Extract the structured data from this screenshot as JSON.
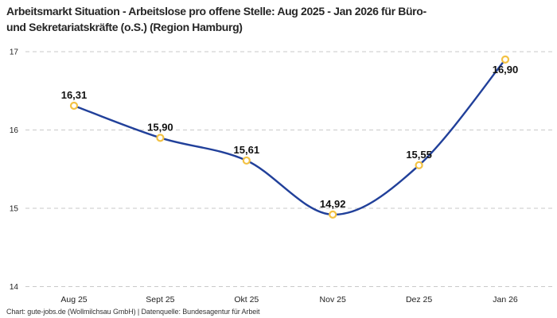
{
  "header": {
    "title_line1": "Arbeitsmarkt Situation - Arbeitslose pro offene Stelle: Aug 2025 - Jan 2026 für Büro-",
    "title_line2": "und Sekretariatskräfte (o.S.) (Region Hamburg)"
  },
  "footer": {
    "attribution": "Chart: gute-jobs.de (Wollmilchsau GmbH) | Datenquelle: Bundesagentur für Arbeit"
  },
  "chart_data": {
    "type": "line",
    "title": "Arbeitsmarkt Situation - Arbeitslose pro offene Stelle: Aug 2025 - Jan 2026 für Büro- und Sekretariatskräfte (o.S.) (Region Hamburg)",
    "categories": [
      "Aug 25",
      "Sept 25",
      "Okt 25",
      "Nov 25",
      "Dez 25",
      "Jan 26"
    ],
    "values": [
      16.31,
      15.9,
      15.61,
      14.92,
      15.55,
      16.9
    ],
    "value_labels": [
      "16,31",
      "15,90",
      "15,61",
      "14,92",
      "15,55",
      "16,90"
    ],
    "label_placements": [
      "above",
      "above",
      "above",
      "above",
      "above",
      "below"
    ],
    "xlabel": "",
    "ylabel": "",
    "ylim": [
      14,
      17
    ],
    "yticks": [
      14,
      15,
      16,
      17
    ],
    "ytick_labels": [
      "14",
      "15",
      "16",
      "17"
    ],
    "grid": "horizontal-dashed",
    "legend": "none",
    "line_smoothing": "spline",
    "colors": {
      "line": "#21409A",
      "marker_stroke": "#F3C244",
      "marker_fill": "#FFFFFF",
      "grid": "#C9C9C9",
      "title": "#262626",
      "tick_label": "#222222",
      "data_label": "#111111",
      "footer": "#333333",
      "background": "#FFFFFF"
    }
  }
}
